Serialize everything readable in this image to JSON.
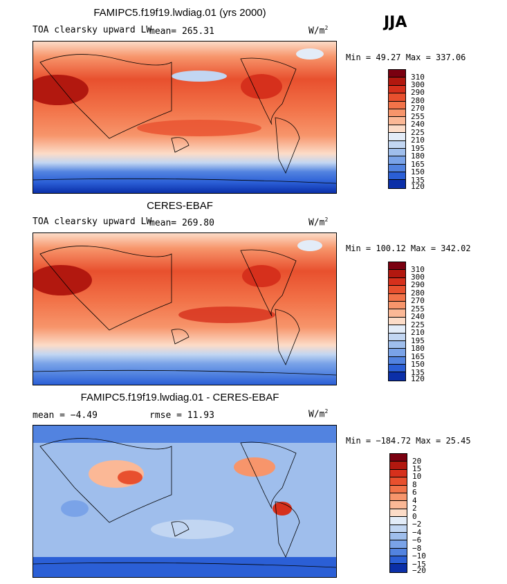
{
  "season": "JJA",
  "units_base": "W/m",
  "units_exp": "2",
  "panels": [
    {
      "title": "FAMIPC5.f19f19.lwdiag.01 (yrs 2000)",
      "variable": "TOA clearsky upward LW",
      "stat": "mean= 265.31",
      "minmax": "Min =  49.27 Max = 337.06",
      "colorbar_levels": [
        "310",
        "300",
        "290",
        "280",
        "270",
        "255",
        "240",
        "225",
        "210",
        "195",
        "180",
        "165",
        "150",
        "135",
        "120"
      ]
    },
    {
      "title": "CERES-EBAF",
      "variable": "TOA clearsky upward LW",
      "stat": "mean= 269.80",
      "minmax": "Min = 100.12 Max = 342.02",
      "colorbar_levels": [
        "310",
        "300",
        "290",
        "280",
        "270",
        "255",
        "240",
        "225",
        "210",
        "195",
        "180",
        "165",
        "150",
        "135",
        "120"
      ]
    },
    {
      "title": "FAMIPC5.f19f19.lwdiag.01 - CERES-EBAF",
      "stat_left": "mean =  −4.49",
      "stat_right": "rmse =  11.93",
      "minmax": "Min = −184.72 Max =  25.45",
      "colorbar_levels": [
        "20",
        "15",
        "10",
        "8",
        "6",
        "4",
        "2",
        "0",
        "−2",
        "−4",
        "−6",
        "−8",
        "−10",
        "−15",
        "−20"
      ]
    }
  ],
  "chart_data": [
    {
      "type": "heatmap",
      "title": "FAMIPC5.f19f19.lwdiag.01 (yrs 2000)",
      "variable": "TOA clearsky upward LW",
      "units": "W/m2",
      "season": "JJA",
      "mean": 265.31,
      "min": 49.27,
      "max": 337.06,
      "levels": [
        120,
        135,
        150,
        165,
        180,
        195,
        210,
        225,
        240,
        255,
        270,
        280,
        290,
        300,
        310
      ]
    },
    {
      "type": "heatmap",
      "title": "CERES-EBAF",
      "variable": "TOA clearsky upward LW",
      "units": "W/m2",
      "season": "JJA",
      "mean": 269.8,
      "min": 100.12,
      "max": 342.02,
      "levels": [
        120,
        135,
        150,
        165,
        180,
        195,
        210,
        225,
        240,
        255,
        270,
        280,
        290,
        300,
        310
      ]
    },
    {
      "type": "heatmap",
      "title": "FAMIPC5.f19f19.lwdiag.01 - CERES-EBAF",
      "units": "W/m2",
      "season": "JJA",
      "mean": -4.49,
      "rmse": 11.93,
      "min": -184.72,
      "max": 25.45,
      "levels": [
        -20,
        -15,
        -10,
        -8,
        -6,
        -4,
        -2,
        0,
        2,
        4,
        6,
        8,
        10,
        15,
        20
      ]
    }
  ],
  "colors": {
    "abs_scale": [
      "#7a0010",
      "#b2180f",
      "#d6301c",
      "#e8502e",
      "#f27349",
      "#f7956b",
      "#fbb896",
      "#fcdcc8",
      "#e3ecf8",
      "#c2d6f2",
      "#9fbeec",
      "#7aa3e8",
      "#5283e0",
      "#2b5fd6",
      "#0b2fa8"
    ],
    "diff_scale": [
      "#7a0010",
      "#b2180f",
      "#d6301c",
      "#e8502e",
      "#f27349",
      "#f7956b",
      "#fbb896",
      "#fcdcc8",
      "#e3ecf8",
      "#c2d6f2",
      "#9fbeec",
      "#7aa3e8",
      "#5283e0",
      "#2b5fd6",
      "#0b2fa8"
    ]
  }
}
